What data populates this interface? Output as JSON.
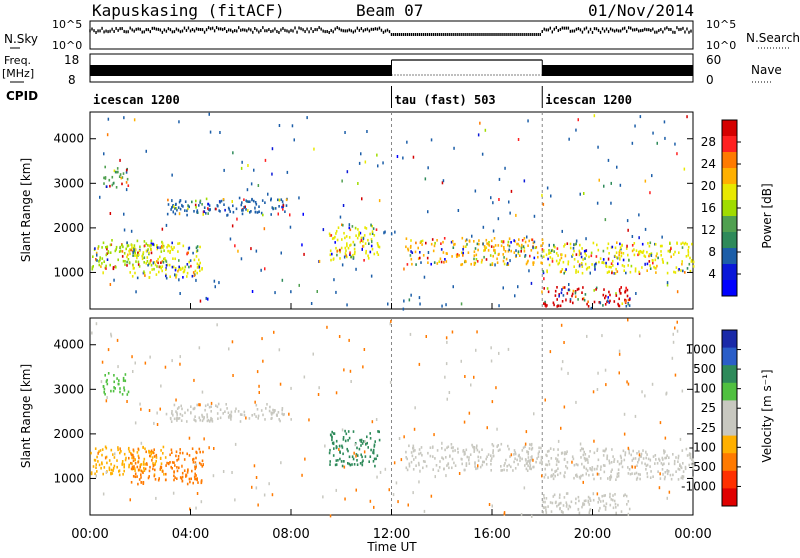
{
  "header": {
    "station": "Kapuskasing (fitACF)",
    "beam": "Beam 07",
    "date": "01/Nov/2014"
  },
  "strips": {
    "nsky_label": "N.Sky",
    "nsky_ticks": [
      "10^5",
      "10^0"
    ],
    "nsearch_label": "N.Search",
    "nsearch_ticks": [
      "10^5",
      "10^0"
    ],
    "freq_label": "Freq.",
    "freq_unit": "[MHz]",
    "freq_ticks": [
      "18",
      "8"
    ],
    "nave_label": "Nave",
    "nave_ticks": [
      "60",
      "0"
    ],
    "cpid_label": "CPID"
  },
  "cpid_segments": [
    {
      "name": "icescan 1200",
      "start_hour": 0,
      "end_hour": 12
    },
    {
      "name": "tau (fast) 503",
      "start_hour": 12,
      "end_hour": 18
    },
    {
      "name": "icescan 1200",
      "start_hour": 18,
      "end_hour": 24
    }
  ],
  "panels": [
    {
      "id": "power",
      "ylabel": "Slant Range [km]",
      "colorbar_label": "Power [dB]",
      "colorbar_ticks": [
        "28",
        "24",
        "20",
        "16",
        "12",
        "8",
        "4"
      ],
      "colors": [
        "#d40000",
        "#ff2020",
        "#ff7a00",
        "#ffb000",
        "#e8e800",
        "#a0dc00",
        "#50a050",
        "#2e8a5a",
        "#1c5ea8",
        "#0a18d8",
        "#0000ff"
      ]
    },
    {
      "id": "velocity",
      "ylabel": "Slant Range [km]",
      "colorbar_label": "Velocity [m s⁻¹]",
      "colorbar_ticks": [
        "1000",
        "500",
        "100",
        "25",
        "-25",
        "-100",
        "-500",
        "-1000"
      ],
      "colors": [
        "#1a2aa8",
        "#2a5ec8",
        "#2e8a5a",
        "#50c040",
        "#c8c8c0",
        "#c8c8c0",
        "#ffb000",
        "#ff7a00",
        "#ff3000",
        "#e00000"
      ]
    }
  ],
  "chart_data": {
    "type": "heatmap",
    "title": "Kapuskasing (fitACF)  Beam 07  01/Nov/2014",
    "xlabel": "Time UT",
    "x_ticks": [
      "00:00",
      "04:00",
      "08:00",
      "12:00",
      "16:00",
      "20:00",
      "00:00"
    ],
    "xlim_hours": [
      0,
      24
    ],
    "ylim_km": [
      180,
      4600
    ],
    "y_ticks": [
      1000,
      2000,
      3000,
      4000
    ],
    "mode_change_hours": [
      12,
      18
    ],
    "power_colorbar_db": [
      4,
      8,
      12,
      16,
      20,
      24,
      28
    ],
    "velocity_colorbar_ms": [
      1000,
      500,
      100,
      25,
      -25,
      -100,
      -500,
      -1000
    ],
    "echo_regions": [
      {
        "start_hour": 0.0,
        "end_hour": 3.0,
        "range_km": [
          1100,
          1750
        ],
        "power_db": 14,
        "velocity_ms": -60
      },
      {
        "start_hour": 0.5,
        "end_hour": 1.5,
        "range_km": [
          2900,
          3400
        ],
        "power_db": 10,
        "velocity_ms": 50
      },
      {
        "start_hour": 1.5,
        "end_hour": 4.5,
        "range_km": [
          900,
          1700
        ],
        "power_db": 16,
        "velocity_ms": -200
      },
      {
        "start_hour": 3.0,
        "end_hour": 8.0,
        "range_km": [
          2300,
          2700
        ],
        "power_db": 6,
        "velocity_ms": 10
      },
      {
        "start_hour": 9.5,
        "end_hour": 11.5,
        "range_km": [
          1300,
          2100
        ],
        "power_db": 16,
        "velocity_ms": 80
      },
      {
        "start_hour": 12.5,
        "end_hour": 18.0,
        "range_km": [
          1200,
          1800
        ],
        "power_db": 20,
        "velocity_ms": 5
      },
      {
        "start_hour": 18.0,
        "end_hour": 24.0,
        "range_km": [
          1000,
          1700
        ],
        "power_db": 16,
        "velocity_ms": 0
      },
      {
        "start_hour": 18.0,
        "end_hour": 21.5,
        "range_km": [
          250,
          700
        ],
        "power_db": 28,
        "velocity_ms": 0
      }
    ]
  }
}
